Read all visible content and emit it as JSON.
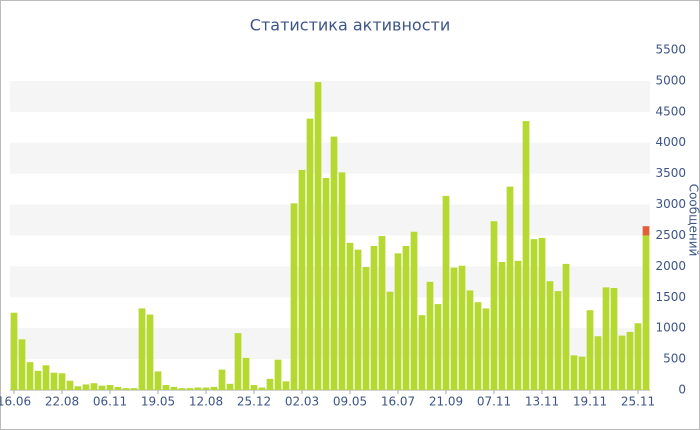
{
  "chart_data": {
    "type": "bar",
    "title": "Статистика активности",
    "y_label": "Сообщений",
    "categories": [
      "16.06",
      null,
      null,
      null,
      null,
      null,
      "22.08",
      null,
      null,
      null,
      null,
      null,
      "06.11",
      null,
      null,
      null,
      null,
      null,
      "19.05",
      null,
      null,
      null,
      null,
      null,
      "12.08",
      null,
      null,
      null,
      null,
      null,
      "25.12",
      null,
      null,
      null,
      null,
      null,
      "02.03",
      null,
      null,
      null,
      null,
      null,
      "09.05",
      null,
      null,
      null,
      null,
      null,
      "16.07",
      null,
      null,
      null,
      null,
      null,
      "21.09",
      null,
      null,
      null,
      null,
      null,
      "07.11",
      null,
      null,
      null,
      null,
      null,
      "13.11",
      null,
      null,
      null,
      null,
      null,
      "19.11",
      null,
      null,
      null,
      null,
      null,
      "25.11",
      null
    ],
    "series": [
      {
        "color": "#b5d930",
        "values": [
          1250,
          820,
          450,
          310,
          400,
          280,
          270,
          150,
          60,
          90,
          110,
          70,
          80,
          50,
          30,
          30,
          1320,
          1220,
          300,
          80,
          50,
          30,
          30,
          40,
          40,
          50,
          330,
          100,
          920,
          520,
          80,
          40,
          180,
          490,
          140,
          3020,
          3560,
          4390,
          4980,
          3430,
          4100,
          3520,
          2380,
          2270,
          1990,
          2330,
          2490,
          1590,
          2210,
          2330,
          2560,
          1210,
          1750,
          1390,
          3140,
          1980,
          2010,
          1610,
          1420,
          1320,
          2730,
          2070,
          3290,
          2090,
          4350,
          2440,
          2460,
          1760,
          1600,
          2040,
          560,
          540,
          1290,
          870,
          1660,
          1650,
          880,
          940,
          1080,
          2500
        ]
      },
      {
        "color": "#e0603a",
        "values": [
          null,
          null,
          null,
          null,
          null,
          null,
          null,
          null,
          null,
          null,
          null,
          null,
          null,
          null,
          null,
          null,
          null,
          null,
          null,
          null,
          null,
          null,
          null,
          null,
          null,
          null,
          null,
          null,
          null,
          null,
          null,
          null,
          null,
          null,
          null,
          null,
          null,
          null,
          null,
          null,
          null,
          null,
          null,
          null,
          null,
          null,
          null,
          null,
          null,
          null,
          null,
          null,
          null,
          null,
          null,
          null,
          null,
          null,
          null,
          null,
          null,
          null,
          null,
          null,
          null,
          null,
          null,
          null,
          null,
          null,
          null,
          null,
          null,
          null,
          null,
          null,
          null,
          null,
          null,
          150
        ]
      }
    ],
    "ylim": [
      0,
      5500
    ],
    "yticks": [
      0,
      500,
      1000,
      1500,
      2000,
      2500,
      3000,
      3500,
      4000,
      4500,
      5000,
      5500
    ],
    "grid": true
  }
}
